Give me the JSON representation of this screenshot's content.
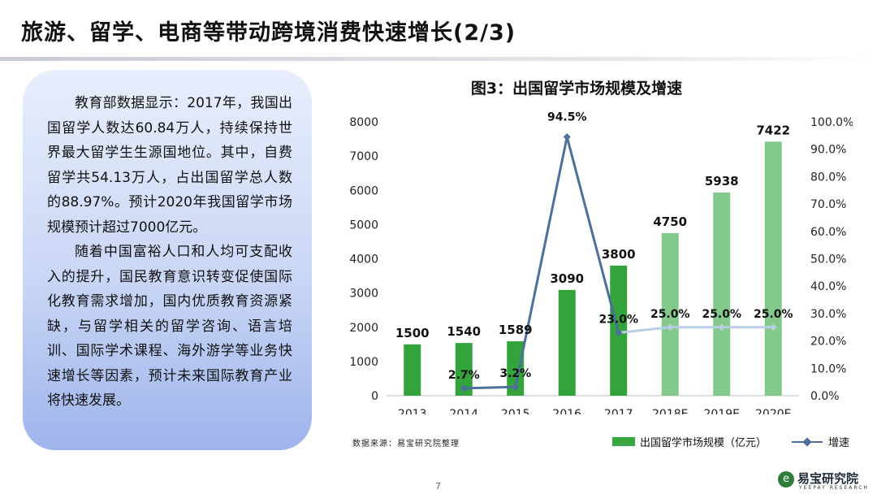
{
  "page_title": "旅游、留学、电商等带动跨境消费快速增长(2/3)",
  "text_panel": {
    "paragraphs": [
      "教育部数据显示：2017年，我国出国留学人数达60.84万人，持续保持世界最大留学生生源国地位。其中，自费留学共54.13万人，占出国留学总人数的88.97%。预计2020年我国留学市场规模预计超过7000亿元。",
      "随着中国富裕人口和人均可支配收入的提升，国民教育意识转变促使国际化教育需求增加，国内优质教育资源紧缺，与留学相关的留学咨询、语言培训、国际学术课程、海外游学等业务快速增长等因素，预计未来国际教育产业将快速发展。"
    ]
  },
  "chart_data": {
    "type": "bar",
    "title": "图3：出国留学市场规模及增速",
    "categories": [
      "2013",
      "2014",
      "2015",
      "2016",
      "2017",
      "2018E",
      "2019E",
      "2020E"
    ],
    "series": [
      {
        "name": "出国留学市场规模（亿元）",
        "type": "bar",
        "axis": "left",
        "values": [
          1500,
          1540,
          1589,
          3090,
          3800,
          4750,
          5938,
          7422
        ],
        "labels": [
          "1500",
          "1540",
          "1589",
          "3090",
          "3800",
          "4750",
          "5938",
          "7422"
        ],
        "colors": [
          "#33a33c",
          "#33a33c",
          "#33a33c",
          "#33a33c",
          "#33a33c",
          "#82c98a",
          "#82c98a",
          "#82c98a"
        ]
      },
      {
        "name": "增速",
        "type": "line",
        "axis": "right",
        "values": [
          null,
          2.7,
          3.2,
          94.5,
          23.0,
          25.0,
          25.0,
          25.0
        ],
        "labels": [
          "",
          "2.7%",
          "3.2%",
          "94.5%",
          "23.0%",
          "25.0%",
          "25.0%",
          "25.0%"
        ],
        "color": "#4c6f9b",
        "forecast_color": "#b9cde3"
      }
    ],
    "y_left": {
      "min": 0,
      "max": 8000,
      "ticks": [
        "0",
        "1000",
        "2000",
        "3000",
        "4000",
        "5000",
        "6000",
        "7000",
        "8000"
      ]
    },
    "y_right": {
      "min": 0,
      "max": 100,
      "ticks": [
        "0.0%",
        "10.0%",
        "20.0%",
        "30.0%",
        "40.0%",
        "50.0%",
        "60.0%",
        "70.0%",
        "80.0%",
        "90.0%",
        "100.0%"
      ]
    },
    "grid": false,
    "legend_position": "bottom-right"
  },
  "source_note": "数据来源：易宝研究院整理",
  "legend": {
    "bar_label": "出国留学市场规模（亿元）",
    "line_label": "增速"
  },
  "page_number": "7",
  "logo": {
    "text": "易宝研究院",
    "sub": "YEEPAY RESEARCH",
    "color": "#2e7d3a"
  }
}
